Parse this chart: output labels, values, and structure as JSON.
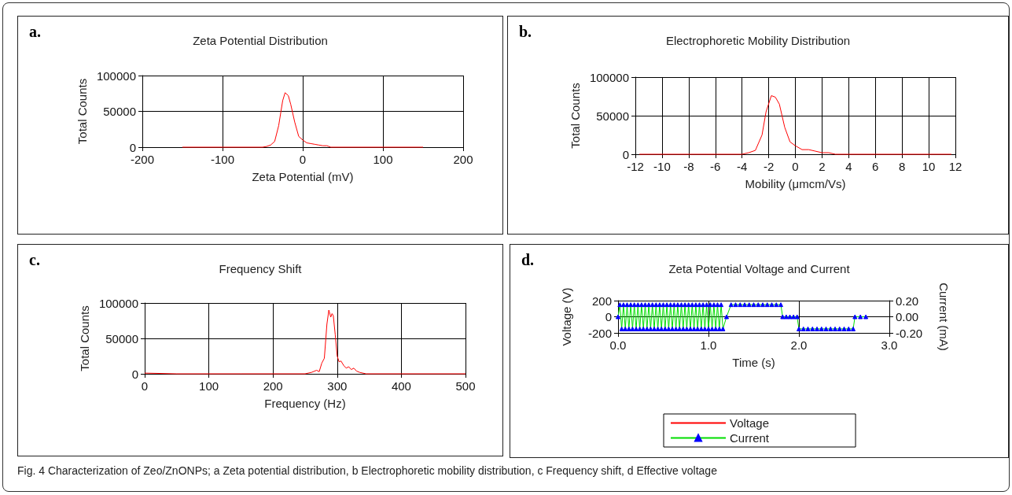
{
  "chart_data": [
    {
      "type": "line",
      "title": "Zeta Potential Distribution",
      "xlabel": "Zeta Potential (mV)",
      "ylabel": "Total Counts",
      "annotations": [
        "a.",
        "Fig. 4  Characterization of Zeo/ZnONPs; a Zeta potential distribution, b Electrophoretic mobility distribution, c Frequency shift, d Effective voltage"
      ],
      "x": [
        -150,
        -100,
        -50,
        -45,
        -40,
        -35,
        -30,
        -25,
        -22,
        -18,
        -15,
        -10,
        -5,
        0,
        5,
        10,
        15,
        20,
        25,
        30,
        35,
        50,
        100,
        150
      ],
      "series": [
        {
          "color": "#ff0000",
          "values": [
            0,
            0,
            0,
            1000,
            3000,
            8000,
            30000,
            65000,
            76000,
            72000,
            60000,
            35000,
            15000,
            10000,
            6000,
            5000,
            4000,
            3000,
            2000,
            2000,
            0,
            0,
            0,
            0
          ]
        }
      ],
      "xlim": [
        -200,
        200
      ],
      "xticks": [
        -200,
        -100,
        0,
        100,
        200
      ],
      "ylim": [
        0,
        100000
      ],
      "yticks": [
        0,
        50000,
        100000
      ],
      "grid": true,
      "marker": "none",
      "line_style": "solid",
      "legend": false
    },
    {
      "type": "line",
      "title": "Electrophoretic Mobility Distribution",
      "xlabel": "Mobility (μmcm/Vs)",
      "ylabel": "Total Counts",
      "annotations": [
        "b."
      ],
      "x": [
        -11.7,
        -8,
        -4,
        -3.5,
        -3,
        -2.5,
        -2.2,
        -1.8,
        -1.5,
        -1.2,
        -0.8,
        -0.4,
        0,
        0.5,
        1,
        1.5,
        2,
        2.5,
        3,
        6,
        11.7
      ],
      "series": [
        {
          "color": "#ff0000",
          "values": [
            0,
            0,
            0,
            2000,
            5000,
            25000,
            55000,
            76000,
            74000,
            65000,
            35000,
            16000,
            11000,
            6000,
            6000,
            4000,
            2000,
            2000,
            0,
            0,
            0
          ]
        }
      ],
      "xlim": [
        -12,
        12
      ],
      "xticks": [
        -12,
        -10,
        -8,
        -6,
        -4,
        -2,
        0,
        2,
        4,
        6,
        8,
        10,
        12
      ],
      "ylim": [
        0,
        100000
      ],
      "yticks": [
        0,
        50000,
        100000
      ],
      "grid": true,
      "marker": "none",
      "line_style": "solid",
      "legend": false
    },
    {
      "type": "line",
      "title": "Frequency Shift",
      "xlabel": "Frequency (Hz)",
      "ylabel": "Total Counts",
      "annotations": [
        "c."
      ],
      "x": [
        0,
        50,
        100,
        150,
        200,
        250,
        260,
        268,
        272,
        276,
        280,
        284,
        287,
        290,
        292,
        294,
        297,
        300,
        303,
        306,
        310,
        314,
        318,
        322,
        326,
        330,
        335,
        345,
        400,
        500
      ],
      "series": [
        {
          "color": "#ff0000",
          "values": [
            1000,
            0,
            0,
            0,
            0,
            0,
            2000,
            5000,
            3000,
            15000,
            22000,
            70000,
            90000,
            80000,
            85000,
            82000,
            55000,
            25000,
            17000,
            18000,
            12000,
            8000,
            10000,
            6000,
            8000,
            4000,
            2000,
            0,
            0,
            0
          ]
        }
      ],
      "xlim": [
        0,
        500
      ],
      "xticks": [
        0,
        100,
        200,
        300,
        400,
        500
      ],
      "ylim": [
        0,
        100000
      ],
      "yticks": [
        0,
        50000,
        100000
      ],
      "grid": true,
      "marker": "none",
      "line_style": "solid",
      "legend": false
    },
    {
      "type": "line",
      "title": "Zeta Potential Voltage and Current",
      "xlabel": "Time (s)",
      "ylabel": "Voltage (V)",
      "y2label": "Current (mA)",
      "annotations": [
        "d."
      ],
      "series": [
        {
          "name": "Voltage",
          "color": "#ff0000"
        },
        {
          "name": "Current",
          "color": "#00dd00",
          "axis": "y2",
          "marker": "triangle",
          "x": [
            0,
            0.02,
            0.04,
            0.06,
            0.08,
            0.1,
            0.12,
            0.14,
            0.16,
            0.18,
            0.2,
            0.22,
            0.24,
            0.26,
            0.28,
            0.3,
            0.32,
            0.34,
            0.36,
            0.38,
            0.4,
            0.42,
            0.44,
            0.46,
            0.48,
            0.5,
            0.52,
            0.54,
            0.56,
            0.58,
            0.6,
            0.62,
            0.64,
            0.66,
            0.68,
            0.7,
            0.72,
            0.74,
            0.76,
            0.78,
            0.8,
            0.82,
            0.84,
            0.86,
            0.88,
            0.9,
            0.92,
            0.94,
            0.96,
            0.98,
            1,
            1.02,
            1.04,
            1.06,
            1.08,
            1.1,
            1.12,
            1.14,
            1.16,
            1.2,
            1.25,
            1.3,
            1.35,
            1.4,
            1.45,
            1.5,
            1.55,
            1.6,
            1.65,
            1.7,
            1.75,
            1.8,
            1.82,
            1.86,
            1.9,
            1.94,
            1.98,
            2,
            2.05,
            2.1,
            2.15,
            2.2,
            2.25,
            2.3,
            2.35,
            2.4,
            2.45,
            2.5,
            2.55,
            2.6,
            2.62,
            2.68,
            2.74
          ],
          "values": [
            0,
            0.15,
            -0.15,
            0.15,
            -0.15,
            0.15,
            -0.15,
            0.15,
            -0.15,
            0.15,
            -0.15,
            0.15,
            -0.15,
            0.15,
            -0.15,
            0.15,
            -0.15,
            0.15,
            -0.15,
            0.15,
            -0.15,
            0.15,
            -0.15,
            0.15,
            -0.15,
            0.15,
            -0.15,
            0.15,
            -0.15,
            0.15,
            -0.15,
            0.15,
            -0.15,
            0.15,
            -0.15,
            0.15,
            -0.15,
            0.15,
            -0.15,
            0.15,
            -0.15,
            0.15,
            -0.15,
            0.15,
            -0.15,
            0.15,
            -0.15,
            0.15,
            -0.15,
            0.15,
            -0.15,
            0.15,
            -0.15,
            0.15,
            -0.15,
            0.15,
            -0.15,
            0.15,
            -0.15,
            0,
            0.15,
            0.15,
            0.15,
            0.15,
            0.15,
            0.15,
            0.15,
            0.15,
            0.15,
            0.15,
            0.15,
            0.15,
            0,
            0,
            0,
            0,
            0,
            -0.15,
            -0.15,
            -0.15,
            -0.15,
            -0.15,
            -0.15,
            -0.15,
            -0.15,
            -0.15,
            -0.15,
            -0.15,
            -0.15,
            -0.15,
            0,
            0,
            0
          ]
        }
      ],
      "xlim": [
        0,
        3
      ],
      "xticks": [
        {
          "value": 0,
          "label": "0.0"
        },
        {
          "value": 1,
          "label": "1.0"
        },
        {
          "value": 2,
          "label": "2.0"
        },
        {
          "value": 3,
          "label": "3.0"
        }
      ],
      "ylim": [
        -200,
        200
      ],
      "yticks": [
        -200,
        0,
        200
      ],
      "y2lim": [
        -0.2,
        0.2
      ],
      "y2ticks": [
        {
          "value": -0.2,
          "label": "-0.20"
        },
        {
          "value": 0,
          "label": "0.00"
        },
        {
          "value": 0.2,
          "label": "0.20"
        }
      ],
      "grid": true,
      "line_style": "solid",
      "legend": "bottom"
    }
  ]
}
